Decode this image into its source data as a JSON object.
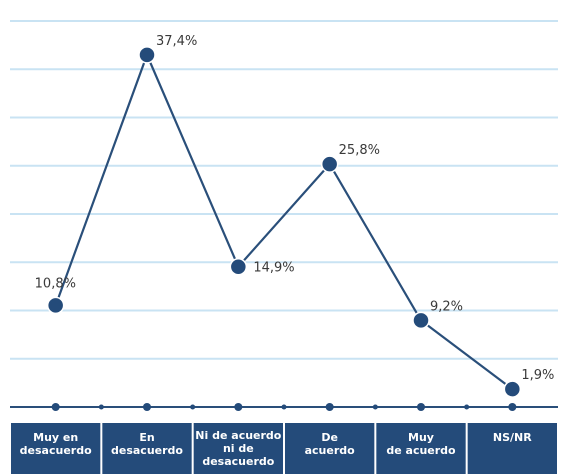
{
  "chart_data": {
    "type": "line",
    "categories": [
      [
        "Muy en",
        "desacuerdo"
      ],
      [
        "En",
        "desacuerdo"
      ],
      [
        "Ni de acuerdo",
        "ni de",
        "desacuerdo"
      ],
      [
        "De",
        "acuerdo"
      ],
      [
        "Muy",
        "de acuerdo"
      ],
      [
        "NS/NR"
      ]
    ],
    "values": [
      10.8,
      37.4,
      14.9,
      25.8,
      9.2,
      1.9
    ],
    "data_labels": [
      "10,8%",
      "37,4%",
      "14,9%",
      "25,8%",
      "9,2%",
      "1,9%"
    ],
    "ylim": [
      0,
      41
    ],
    "grid": true,
    "legend": "none",
    "colors": {
      "line": "#2a4f7a",
      "point": "#244b7a",
      "grid": "#c9e3f3",
      "category_band": "#244b7a",
      "category_text": "#ffffff"
    }
  }
}
